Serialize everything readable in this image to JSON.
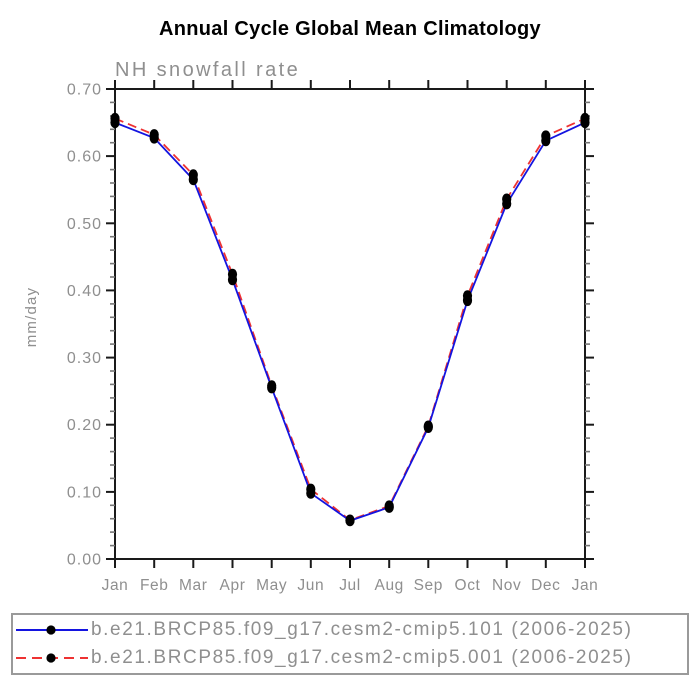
{
  "title": "Annual Cycle Global Mean Climatology",
  "chart_data": {
    "type": "line",
    "title": "Annual Cycle Global Mean Climatology",
    "subtitle": "NH snowfall rate",
    "ylabel": "mm/day",
    "x_categories": [
      "Jan",
      "Feb",
      "Mar",
      "Apr",
      "May",
      "Jun",
      "Jul",
      "Aug",
      "Sep",
      "Oct",
      "Nov",
      "Dec",
      "Jan"
    ],
    "ylim": [
      0.0,
      0.7
    ],
    "ytick_step": 0.1,
    "yminor_step": 0.02,
    "ytick_labels": [
      "0.00",
      "0.10",
      "0.20",
      "0.30",
      "0.40",
      "0.50",
      "0.60",
      "0.70"
    ],
    "grid": false,
    "legend_position": "bottom",
    "series": [
      {
        "name": "b.e21.BRCP85.f09_g17.cesm2-cmip5.101 (2006-2025)",
        "color": "#1414e0",
        "line_style": "solid",
        "marker": "black-dot",
        "values": [
          0.65,
          0.627,
          0.565,
          0.416,
          0.255,
          0.098,
          0.057,
          0.077,
          0.196,
          0.385,
          0.529,
          0.623,
          0.65
        ]
      },
      {
        "name": "b.e21.BRCP85.f09_g17.cesm2-cmip5.001 (2006-2025)",
        "color": "#ee3232",
        "line_style": "dashed",
        "marker": "black-dot",
        "values": [
          0.656,
          0.632,
          0.572,
          0.424,
          0.258,
          0.104,
          0.058,
          0.079,
          0.198,
          0.392,
          0.536,
          0.63,
          0.656
        ]
      }
    ],
    "colors": {
      "axis": "#1a1a1a",
      "minor_tick": "#777777",
      "label_text": "#8f8f8f",
      "marker": "#000000",
      "legend_border": "#9a9a9a",
      "title_text": "#000000"
    }
  }
}
